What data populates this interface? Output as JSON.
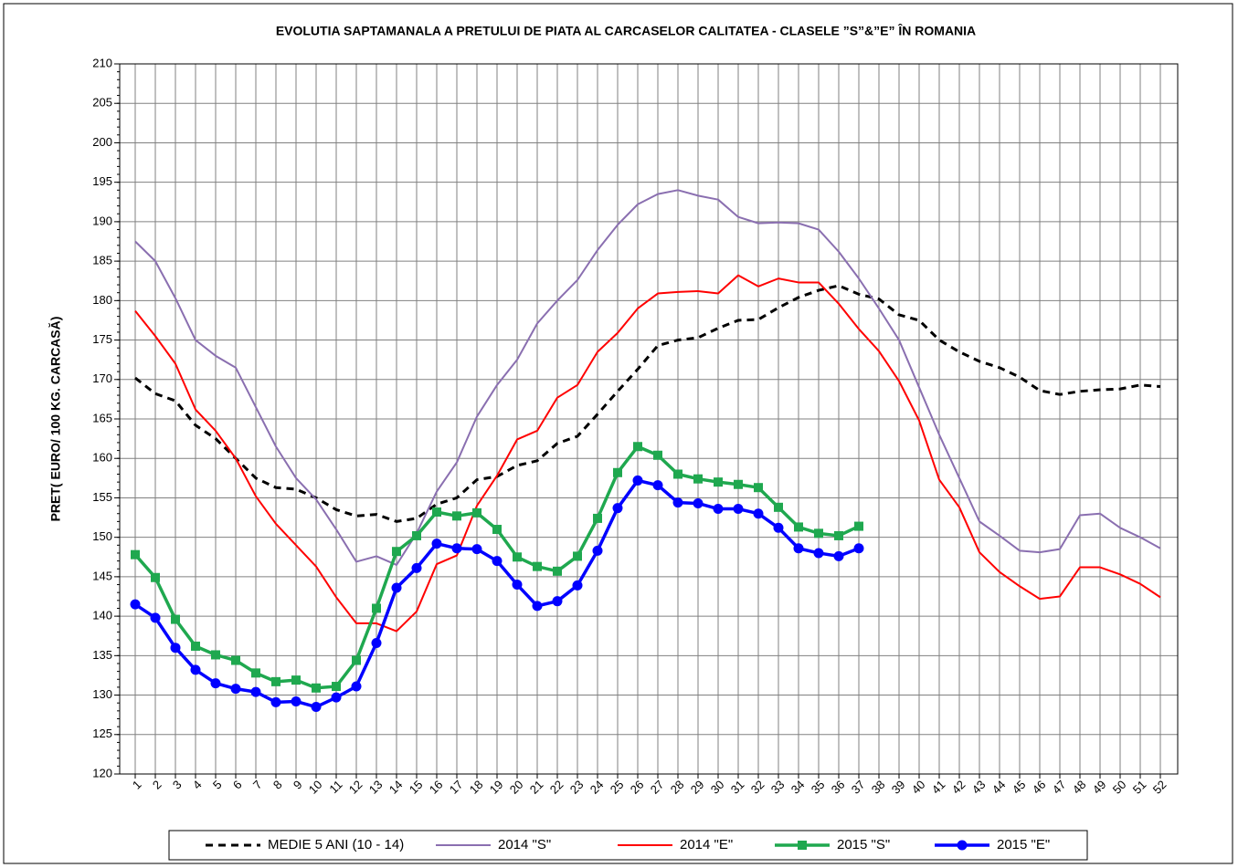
{
  "chart_data": {
    "type": "line",
    "title": "EVOLUTIA SAPTAMANALA  A PRETULUI  DE PIATA  AL CARCASELOR  CALITATEA  - CLASELE ”S”&”E”  ÎN ROMANIA",
    "y_label": "PRET( EURO/ 100 KG. CARCASĂ)",
    "categories": [
      "1",
      "2",
      "3",
      "4",
      "5",
      "6",
      "7",
      "8",
      "9",
      "10",
      "11",
      "12",
      "13",
      "14",
      "15",
      "16",
      "17",
      "18",
      "19",
      "20",
      "21",
      "22",
      "23",
      "24",
      "25",
      "26",
      "27",
      "28",
      "29",
      "30",
      "31",
      "32",
      "33",
      "34",
      "35",
      "36",
      "37",
      "38",
      "39",
      "40",
      "41",
      "42",
      "43",
      "44",
      "45",
      "46",
      "47",
      "48",
      "49",
      "50",
      "51",
      "52"
    ],
    "ylim": [
      120,
      210
    ],
    "yticks": [
      120,
      125,
      130,
      135,
      140,
      145,
      150,
      155,
      160,
      165,
      170,
      175,
      180,
      185,
      190,
      195,
      200,
      205,
      210
    ],
    "grid": true,
    "legend": "bottom",
    "series": [
      {
        "name": "MEDIE 5 ANI (10 - 14)",
        "color": "#000000",
        "style": "dashed",
        "values": [
          170.2,
          168.2,
          167.3,
          164.2,
          162.5,
          160,
          157.5,
          156.3,
          156.1,
          155,
          153.5,
          152.7,
          152.9,
          152,
          152.4,
          154.2,
          155,
          157.3,
          157.7,
          159.1,
          159.7,
          161.9,
          162.8,
          165.6,
          168.5,
          171.3,
          174.3,
          175,
          175.3,
          176.5,
          177.5,
          177.6,
          179.1,
          180.4,
          181.3,
          181.9,
          180.8,
          180.2,
          178.2,
          177.5,
          175,
          173.5,
          172.3,
          171.5,
          170.3,
          168.6,
          168.1,
          168.5,
          168.7,
          168.8,
          169.3,
          169.1
        ]
      },
      {
        "name": "2014 \"S\"",
        "color": "#8a6fb0",
        "style": "solid",
        "values": [
          187.5,
          185,
          180.3,
          175,
          173,
          171.5,
          166.5,
          161.5,
          157.5,
          154.8,
          151,
          146.9,
          147.6,
          146.5,
          150.5,
          155.8,
          159.5,
          165.3,
          169.3,
          172.5,
          177.1,
          180,
          182.6,
          186.4,
          189.6,
          192.2,
          193.5,
          194,
          193.3,
          192.8,
          190.6,
          189.8,
          189.9,
          189.8,
          189,
          186.2,
          182.8,
          179,
          175,
          169,
          163,
          157.5,
          152,
          150.2,
          148.3,
          148.1,
          148.5,
          152.8,
          153,
          151.2,
          150,
          148.6
        ]
      },
      {
        "name": "2014 \"E\"",
        "color": "#ff0000",
        "style": "solid",
        "values": [
          178.7,
          175.5,
          172,
          166.2,
          163.5,
          160,
          155.2,
          151.7,
          149,
          146.3,
          142.4,
          139.1,
          139.1,
          138.1,
          140.6,
          146.6,
          147.7,
          154,
          157.8,
          162.4,
          163.5,
          167.7,
          169.3,
          173.5,
          175.9,
          179,
          180.9,
          181.1,
          181.2,
          180.9,
          183.2,
          181.8,
          182.8,
          182.3,
          182.3,
          179.6,
          176.4,
          173.6,
          169.8,
          164.8,
          157.3,
          153.8,
          148.1,
          145.6,
          143.8,
          142.2,
          142.5,
          146.2,
          146.2,
          145.3,
          144.1,
          142.4
        ]
      },
      {
        "name": "2015 \"S\"",
        "color": "#1fa84f",
        "style": "square",
        "values": [
          147.8,
          144.9,
          139.6,
          136.2,
          135.1,
          134.4,
          132.8,
          131.7,
          131.9,
          130.9,
          131.1,
          134.4,
          141,
          148.2,
          150.2,
          153.2,
          152.7,
          153.1,
          151,
          147.5,
          146.3,
          145.7,
          147.6,
          152.4,
          158.2,
          161.5,
          160.4,
          158,
          157.4,
          157,
          156.7,
          156.3,
          153.8,
          151.3,
          150.5,
          150.2,
          151.4,
          null,
          null,
          null,
          null,
          null,
          null,
          null,
          null,
          null,
          null,
          null,
          null,
          null,
          null,
          null
        ]
      },
      {
        "name": "2015 \"E\"",
        "color": "#0000ff",
        "style": "circle",
        "values": [
          141.5,
          139.8,
          136,
          133.2,
          131.5,
          130.8,
          130.4,
          129.1,
          129.2,
          128.5,
          129.7,
          131.1,
          136.6,
          143.6,
          146.1,
          149.2,
          148.6,
          148.5,
          147,
          144,
          141.3,
          141.9,
          143.9,
          148.3,
          153.7,
          157.2,
          156.6,
          154.4,
          154.3,
          153.6,
          153.6,
          153,
          151.2,
          148.6,
          148,
          147.6,
          148.6,
          null,
          null,
          null,
          null,
          null,
          null,
          null,
          null,
          null,
          null,
          null,
          null,
          null,
          null,
          null
        ]
      }
    ]
  }
}
